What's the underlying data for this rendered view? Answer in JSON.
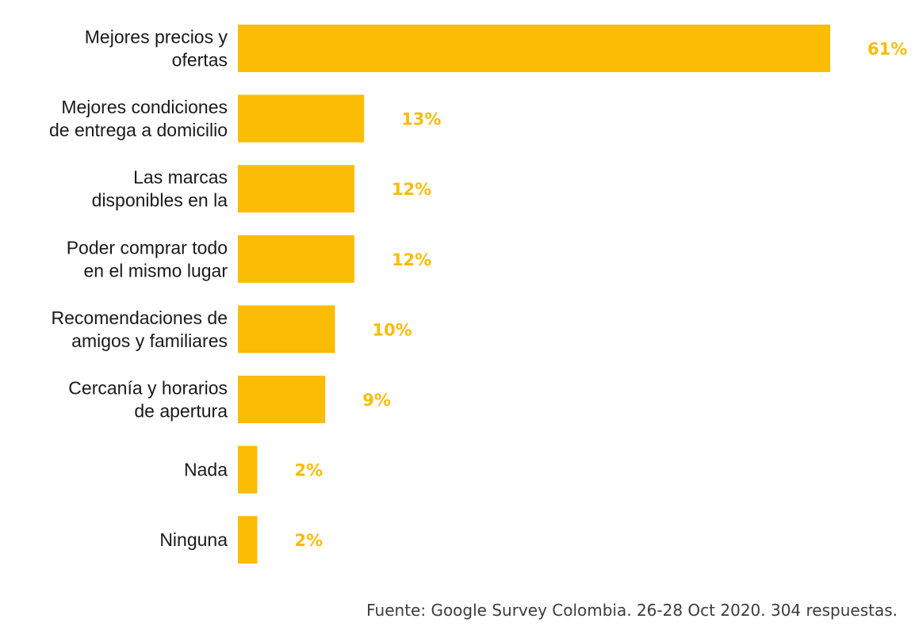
{
  "colors": {
    "bar": "#FBBC05",
    "value_label": "#FBBC05",
    "category_label": "#1a1a1a",
    "source_text": "#3c3c3c"
  },
  "chart_data": {
    "type": "bar",
    "orientation": "horizontal",
    "categories": [
      [
        "Mejores precios y",
        "ofertas"
      ],
      [
        "Mejores condiciones",
        "de entrega a domicilio"
      ],
      [
        "Las marcas",
        "disponibles en la"
      ],
      [
        "Poder comprar todo",
        "en el mismo lugar"
      ],
      [
        "Recomendaciones de",
        "amigos y familiares"
      ],
      [
        "Cercanía y horarios",
        "de apertura"
      ],
      [
        "Nada"
      ],
      [
        "Ninguna"
      ]
    ],
    "values": [
      61,
      13,
      12,
      12,
      10,
      9,
      2,
      2
    ],
    "value_labels": [
      "61%",
      "13%",
      "12%",
      "12%",
      "10%",
      "9%",
      "2%",
      "2%"
    ],
    "unit": "%",
    "xlim": [
      0,
      61
    ],
    "grid": false,
    "legend": "none"
  },
  "footer": {
    "source": "Fuente: Google Survey Colombia. 26-28 Oct 2020. 304 respuestas."
  }
}
